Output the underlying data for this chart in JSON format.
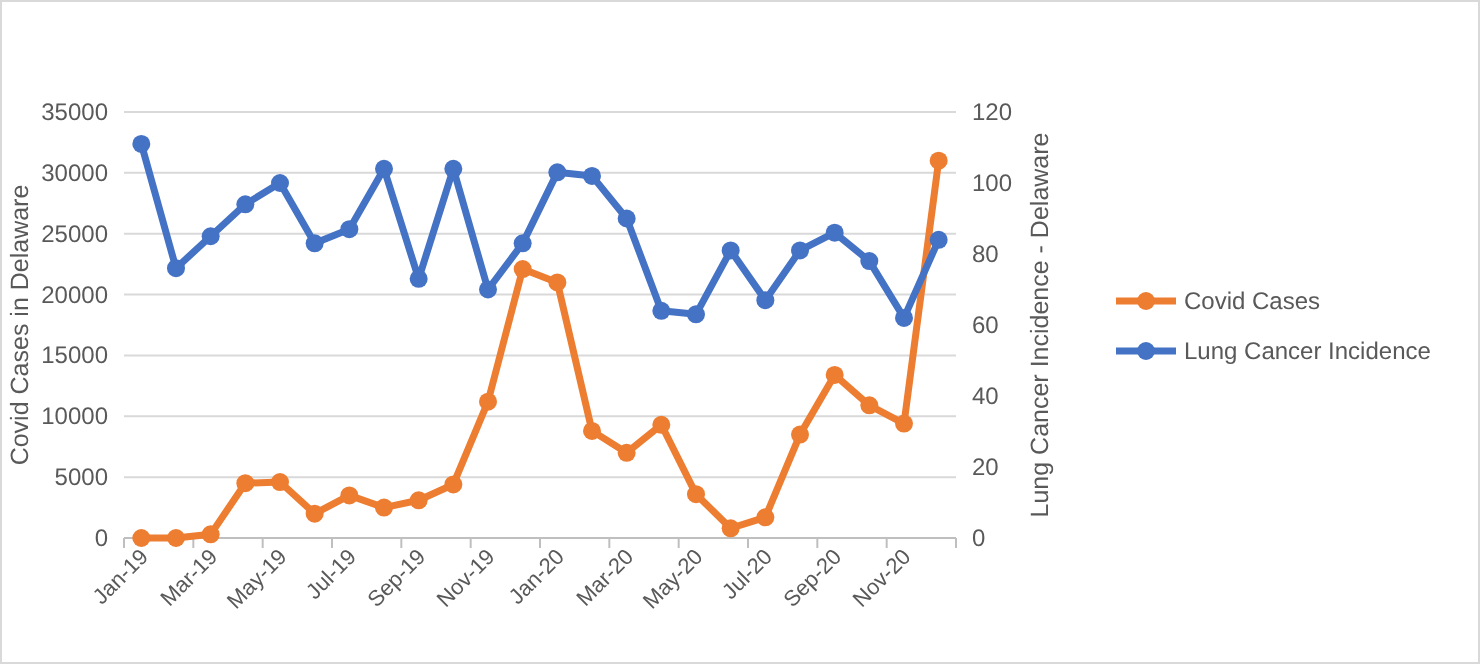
{
  "chart_data": {
    "type": "line",
    "ylabel": "Covid Cases in Delaware",
    "y2label": "Lung Cancer Incidence - Delaware",
    "categories": [
      "Jan-19",
      null,
      "Mar-19",
      null,
      "May-19",
      null,
      "Jul-19",
      null,
      "Sep-19",
      null,
      "Nov-19",
      null,
      "Jan-20",
      null,
      "Mar-20",
      null,
      "May-20",
      null,
      "Jul-20",
      null,
      "Sep-20",
      null,
      "Nov-20",
      null
    ],
    "series": [
      {
        "name": "Covid Cases",
        "color": "#ed7d31",
        "values": [
          0,
          0,
          300,
          4500,
          4600,
          2000,
          3500,
          2500,
          3100,
          4400,
          11200,
          22100,
          21000,
          8800,
          7000,
          9300,
          3600,
          800,
          1700,
          8500,
          13400,
          10900,
          9400,
          31000
        ]
      },
      {
        "name": "Lung Cancer Incidence",
        "color": "#4472c4",
        "axis": "y2",
        "values": [
          111,
          76,
          85,
          94,
          100,
          83,
          87,
          104,
          73,
          104,
          70,
          83,
          103,
          102,
          90,
          64,
          63,
          81,
          67,
          81,
          86,
          78,
          62,
          84
        ]
      }
    ],
    "ylim": [
      0,
      35000
    ],
    "yticks": [
      0,
      5000,
      10000,
      15000,
      20000,
      25000,
      30000,
      35000
    ],
    "y2lim": [
      0,
      120
    ],
    "y2ticks": [
      0,
      20,
      40,
      60,
      80,
      100,
      120
    ],
    "grid": "y",
    "legend": "right",
    "marker": "circle",
    "line_style": "solid"
  }
}
